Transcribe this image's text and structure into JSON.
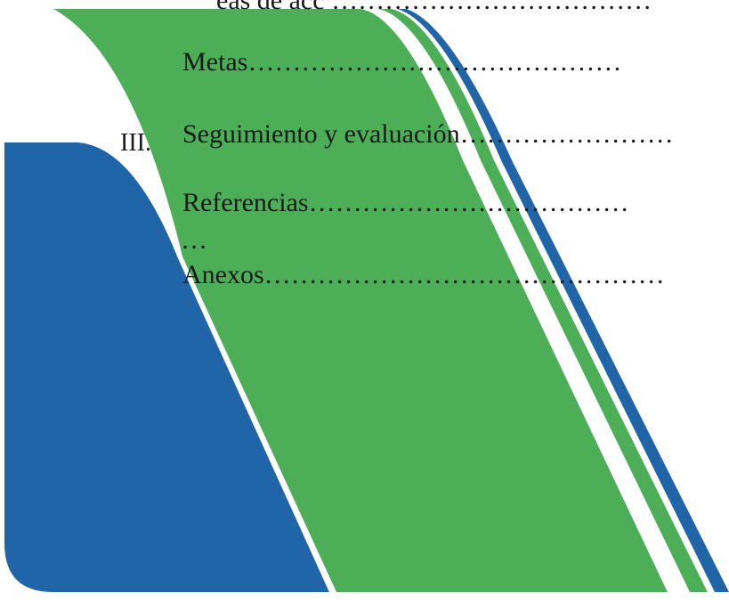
{
  "colors": {
    "green": "#4cae57",
    "blue": "#1f65a8",
    "white": "#ffffff"
  },
  "toc": {
    "partial_top_line": "eas de acc  ………………………………",
    "roman_numeral": "III.",
    "entries": [
      {
        "label": "Metas",
        "leader": "……………………………………"
      },
      {
        "label": "Seguimiento y evaluación",
        "leader": "……………………"
      },
      {
        "label": "Referencias",
        "leader": "………………………………"
      },
      {
        "label": "Anexos",
        "leader": "………………………………………"
      }
    ],
    "wrapped_ellipsis": "…"
  }
}
